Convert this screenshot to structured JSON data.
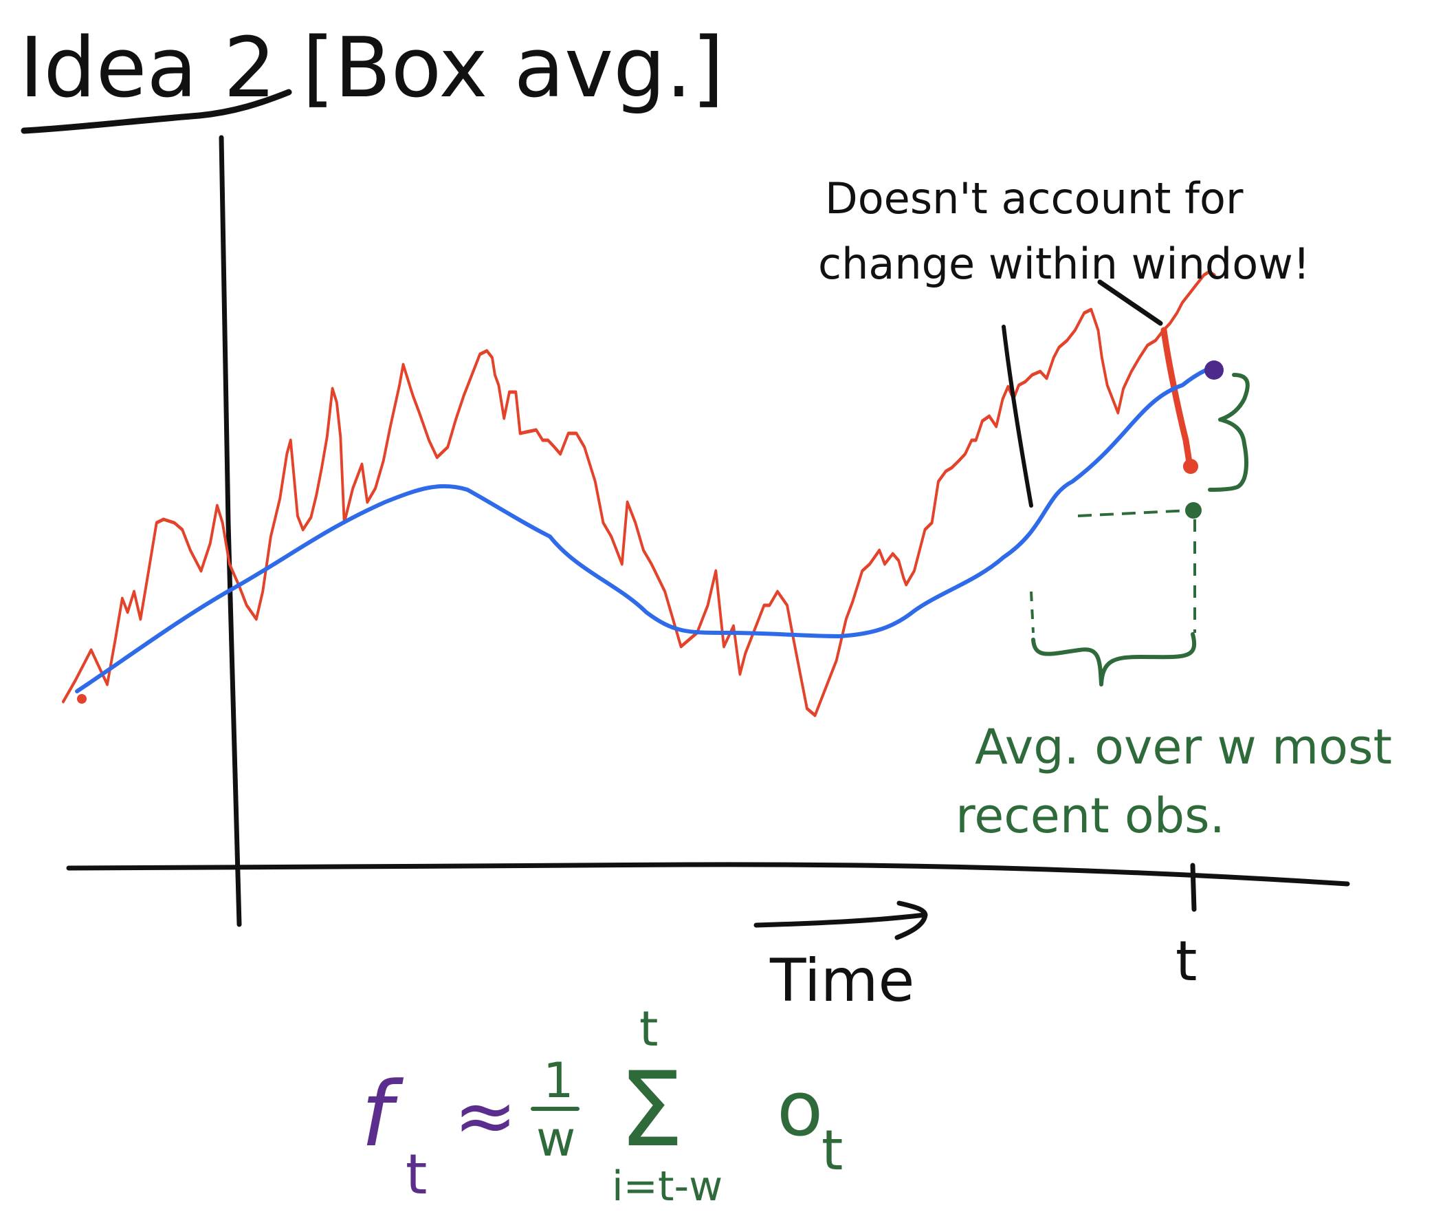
{
  "title": "Idea 2 [Box avg.]",
  "annotations": {
    "warning_line1": "Doesn't account for",
    "warning_line2": "change within window!",
    "window_line1": "Avg. over w most",
    "window_line2": "recent obs."
  },
  "axes": {
    "x_label": "Time",
    "tick_label": "t"
  },
  "formula": {
    "lhs": "f",
    "lhs_sub": "t",
    "approx": "≈",
    "frac_num": "1",
    "frac_den": "w",
    "sum_symbol": "Σ",
    "sum_upper": "t",
    "sum_lower": "i=t-w",
    "term": "o",
    "term_sub": "t"
  },
  "colors": {
    "ink": "#111111",
    "observations": "#e2432a",
    "box_average": "#2f6be8",
    "annotation": "#2f6b3a",
    "formula_lhs": "#5b2d8c",
    "endpoint": "#4b2a8c"
  }
}
